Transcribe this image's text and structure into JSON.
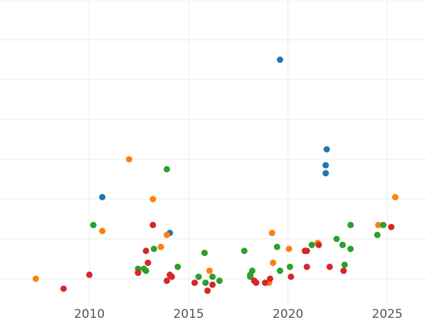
{
  "chart_data": {
    "type": "scatter",
    "title": "",
    "xlabel": "",
    "ylabel": "",
    "xlim": [
      2005.5,
      2027.0
    ],
    "ylim": [
      0,
      15
    ],
    "x_ticks": [
      2010,
      2015,
      2020,
      2025
    ],
    "x_tick_labels": [
      "2010",
      "2015",
      "2020",
      "2025"
    ],
    "y_gridlines": [
      1,
      3,
      5,
      7,
      9,
      11,
      13,
      15
    ],
    "grid": true,
    "legend": "none",
    "series": [
      {
        "color": "#1f77b4",
        "points": [
          {
            "x": 2010.65,
            "y": 5.1
          },
          {
            "x": 2014.05,
            "y": 3.3
          },
          {
            "x": 2019.6,
            "y": 12.0
          },
          {
            "x": 2021.95,
            "y": 7.5
          },
          {
            "x": 2021.9,
            "y": 6.7
          },
          {
            "x": 2021.9,
            "y": 6.3
          }
        ]
      },
      {
        "color": "#ff7f0e",
        "points": [
          {
            "x": 2007.3,
            "y": 1.0
          },
          {
            "x": 2010.65,
            "y": 3.4
          },
          {
            "x": 2012.0,
            "y": 7.0
          },
          {
            "x": 2013.2,
            "y": 5.0
          },
          {
            "x": 2013.6,
            "y": 2.6
          },
          {
            "x": 2013.9,
            "y": 3.2
          },
          {
            "x": 2016.05,
            "y": 1.4
          },
          {
            "x": 2019.2,
            "y": 3.3
          },
          {
            "x": 2019.25,
            "y": 1.8
          },
          {
            "x": 2019.05,
            "y": 0.8
          },
          {
            "x": 2020.05,
            "y": 2.5
          },
          {
            "x": 2021.5,
            "y": 2.8
          },
          {
            "x": 2024.55,
            "y": 3.7
          },
          {
            "x": 2025.4,
            "y": 5.1
          }
        ]
      },
      {
        "color": "#2ca02c",
        "points": [
          {
            "x": 2010.2,
            "y": 3.7
          },
          {
            "x": 2012.45,
            "y": 1.5
          },
          {
            "x": 2012.75,
            "y": 1.5
          },
          {
            "x": 2012.85,
            "y": 1.4
          },
          {
            "x": 2013.25,
            "y": 2.5
          },
          {
            "x": 2013.9,
            "y": 6.5
          },
          {
            "x": 2014.45,
            "y": 1.6
          },
          {
            "x": 2015.5,
            "y": 1.1
          },
          {
            "x": 2015.8,
            "y": 2.3
          },
          {
            "x": 2015.85,
            "y": 0.8
          },
          {
            "x": 2016.2,
            "y": 1.1
          },
          {
            "x": 2016.55,
            "y": 0.9
          },
          {
            "x": 2017.8,
            "y": 2.4
          },
          {
            "x": 2018.1,
            "y": 1.2
          },
          {
            "x": 2018.1,
            "y": 1.1
          },
          {
            "x": 2018.2,
            "y": 1.4
          },
          {
            "x": 2019.45,
            "y": 2.6
          },
          {
            "x": 2019.6,
            "y": 1.4
          },
          {
            "x": 2020.1,
            "y": 1.6
          },
          {
            "x": 2021.2,
            "y": 2.7
          },
          {
            "x": 2022.45,
            "y": 3.0
          },
          {
            "x": 2022.75,
            "y": 2.7
          },
          {
            "x": 2022.85,
            "y": 1.7
          },
          {
            "x": 2023.15,
            "y": 2.5
          },
          {
            "x": 2023.15,
            "y": 3.7
          },
          {
            "x": 2024.5,
            "y": 3.2
          },
          {
            "x": 2024.8,
            "y": 3.7
          }
        ]
      },
      {
        "color": "#d62728",
        "points": [
          {
            "x": 2008.7,
            "y": 0.5
          },
          {
            "x": 2010.0,
            "y": 1.2
          },
          {
            "x": 2012.45,
            "y": 1.3
          },
          {
            "x": 2012.85,
            "y": 2.4
          },
          {
            "x": 2012.95,
            "y": 1.8
          },
          {
            "x": 2013.2,
            "y": 3.7
          },
          {
            "x": 2013.9,
            "y": 0.9
          },
          {
            "x": 2014.05,
            "y": 1.2
          },
          {
            "x": 2014.15,
            "y": 1.1
          },
          {
            "x": 2015.3,
            "y": 0.8
          },
          {
            "x": 2015.95,
            "y": 0.4
          },
          {
            "x": 2016.2,
            "y": 0.7
          },
          {
            "x": 2018.3,
            "y": 0.9
          },
          {
            "x": 2018.4,
            "y": 0.8
          },
          {
            "x": 2018.85,
            "y": 0.8
          },
          {
            "x": 2019.1,
            "y": 1.0
          },
          {
            "x": 2020.15,
            "y": 1.1
          },
          {
            "x": 2020.85,
            "y": 2.4
          },
          {
            "x": 2020.95,
            "y": 2.4
          },
          {
            "x": 2020.95,
            "y": 1.6
          },
          {
            "x": 2021.55,
            "y": 2.7
          },
          {
            "x": 2022.1,
            "y": 1.6
          },
          {
            "x": 2022.8,
            "y": 1.4
          },
          {
            "x": 2025.2,
            "y": 3.6
          }
        ]
      }
    ]
  }
}
